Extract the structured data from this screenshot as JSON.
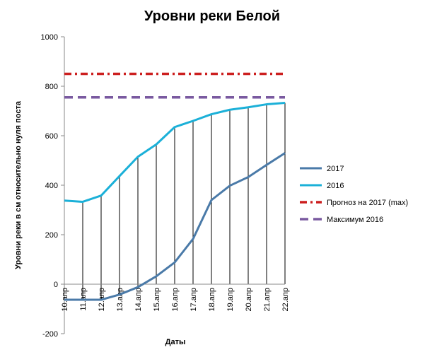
{
  "chart_data": {
    "type": "line",
    "title": "Уровни реки Белой",
    "xlabel": "Даты",
    "ylabel": "Уровни реки в см относительно нуля поста",
    "categories": [
      "10.апр",
      "11.апр",
      "12.апр",
      "13.апр",
      "14.апр",
      "15.апр",
      "16.апр",
      "17.апр",
      "18.апр",
      "19.апр",
      "20.апр",
      "21.апр",
      "22.апр"
    ],
    "ylim": [
      -200,
      1000
    ],
    "yticks": [
      -200,
      0,
      200,
      400,
      600,
      800,
      1000
    ],
    "grid": false,
    "drop_lines": true,
    "legend_position": "right",
    "series": [
      {
        "name": "2017",
        "color": "#4a7aa8",
        "style": "solid",
        "values": [
          -63,
          -63,
          -63,
          -42,
          -12,
          32,
          88,
          183,
          340,
          398,
          433,
          482,
          530
        ]
      },
      {
        "name": "2016",
        "color": "#1bb0d8",
        "style": "solid",
        "values": [
          338,
          333,
          358,
          437,
          515,
          565,
          635,
          660,
          687,
          705,
          715,
          727,
          733
        ]
      },
      {
        "name": "Прогноз на 2017 (max)",
        "color": "#cc1f1f",
        "style": "dash-dot",
        "values": [
          850,
          850,
          850,
          850,
          850,
          850,
          850,
          850,
          850,
          850,
          850,
          850,
          850
        ]
      },
      {
        "name": "Максимум 2016",
        "color": "#7a5aa0",
        "style": "dash",
        "values": [
          755,
          755,
          755,
          755,
          755,
          755,
          755,
          755,
          755,
          755,
          755,
          755,
          755
        ]
      }
    ]
  }
}
